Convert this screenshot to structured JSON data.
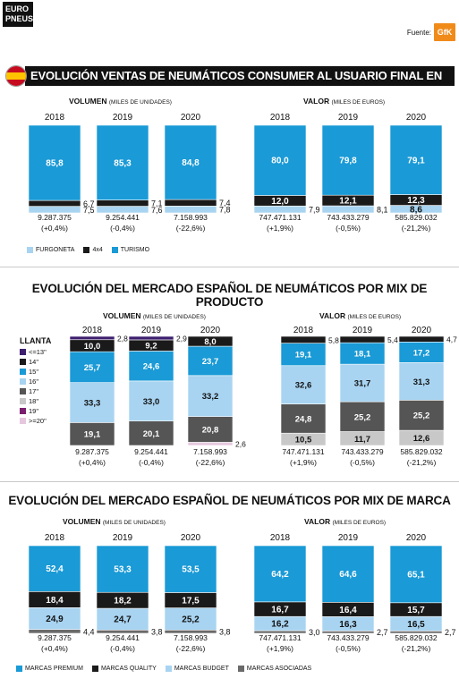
{
  "header": {
    "logo_line1": "EURO",
    "logo_line2": "PNEUS",
    "source_label": "Fuente:",
    "source_logo": "GfK"
  },
  "colors": {
    "turismo": "#1a9ad6",
    "furgoneta": "#a8d4f1",
    "x4": "#1a1a1a",
    "premium": "#1a9ad6",
    "quality": "#1a1a1a",
    "budget": "#a8d4f1",
    "asociadas": "#6a6a6a",
    "r13": "#3d1f6e",
    "r14": "#1a1a1a",
    "r15": "#1a9ad6",
    "r16": "#a8d4f1",
    "r17": "#555555",
    "r18": "#c8c8c8",
    "r19": "#7b1e6e",
    "r20": "#e6c7df"
  },
  "section1": {
    "title": "EVOLUCIÓN VENTAS DE NEUMÁTICOS CONSUMER AL USUARIO FINAL EN ESPAÑA",
    "vol_label": "VOLUMEN",
    "vol_unit": "(MILES DE UNIDADES)",
    "val_label": "VALOR",
    "val_unit": "(MILES DE EUROS)",
    "legend": [
      "FURGONETA",
      "4x4",
      "TURISMO"
    ]
  },
  "section2": {
    "title": "EVOLUCIÓN DEL MERCADO ESPAÑOL DE NEUMÁTICOS POR MIX DE PRODUCTO",
    "vol_label": "VOLUMEN",
    "vol_unit": "(MILES DE UNIDADES)",
    "val_label": "VALOR",
    "val_unit": "(MILES DE EUROS)",
    "llanta_title": "LLANTA",
    "llanta_items": [
      "<=13\"",
      "14\"",
      "15\"",
      "16\"",
      "17\"",
      "18\"",
      "19\"",
      ">=20\""
    ]
  },
  "section3": {
    "title": "EVOLUCIÓN DEL MERCADO ESPAÑOL DE NEUMÁTICOS POR MIX DE MARCA",
    "vol_label": "VOLUMEN",
    "vol_unit": "(MILES DE UNIDADES)",
    "val_label": "VALOR",
    "val_unit": "(MILES DE EUROS)",
    "legend": [
      "MARCAS PREMIUM",
      "MARCAS QUALITY",
      "MARCAS BUDGET",
      "MARCAS ASOCIADAS"
    ]
  },
  "chart_data": [
    {
      "type": "bar",
      "stacked": true,
      "id": "s1-vol",
      "categories": [
        "2018",
        "2019",
        "2020"
      ],
      "totals": [
        "9.287.375",
        "9.254.441",
        "7.158.993"
      ],
      "changes": [
        "(+0,4%)",
        "(-0,4%)",
        "(-22,6%)"
      ],
      "series": [
        {
          "name": "FURGONETA",
          "values": [
            7.5,
            7.6,
            7.8
          ]
        },
        {
          "name": "4x4",
          "values": [
            6.7,
            7.1,
            7.4
          ]
        },
        {
          "name": "TURISMO",
          "values": [
            85.8,
            85.3,
            84.8
          ]
        }
      ]
    },
    {
      "type": "bar",
      "stacked": true,
      "id": "s1-val",
      "categories": [
        "2018",
        "2019",
        "2020"
      ],
      "totals": [
        "747.471.131",
        "743.433.279",
        "585.829.032"
      ],
      "changes": [
        "(+1,9%)",
        "(-0,5%)",
        "(-21,2%)"
      ],
      "series": [
        {
          "name": "FURGONETA",
          "values": [
            7.9,
            8.1,
            8.6
          ]
        },
        {
          "name": "4x4",
          "values": [
            12.0,
            12.1,
            12.3
          ]
        },
        {
          "name": "TURISMO",
          "values": [
            80.0,
            79.8,
            79.1
          ]
        }
      ]
    },
    {
      "type": "bar",
      "stacked": true,
      "id": "s2-vol",
      "categories": [
        "2018",
        "2019",
        "2020"
      ],
      "totals": [
        "9.287.375",
        "9.254.441",
        "7.158.993"
      ],
      "changes": [
        "(+0,4%)",
        "(-0,4%)",
        "(-22,6%)"
      ],
      "series": [
        {
          "name": ">=20\"",
          "values": [
            0.0,
            0.0,
            2.6
          ]
        },
        {
          "name": "18\"",
          "values": [
            0.0,
            0.0,
            0.0
          ]
        },
        {
          "name": "17\"",
          "values": [
            19.1,
            20.1,
            20.8
          ]
        },
        {
          "name": "16\"",
          "values": [
            33.3,
            33.0,
            33.2
          ]
        },
        {
          "name": "15\"",
          "values": [
            25.7,
            24.6,
            23.7
          ]
        },
        {
          "name": "14\"",
          "values": [
            10.0,
            9.2,
            8.0
          ]
        },
        {
          "name": "<=13\"",
          "values": [
            2.8,
            2.9,
            0.0
          ]
        }
      ]
    },
    {
      "type": "bar",
      "stacked": true,
      "id": "s2-val",
      "categories": [
        "2018",
        "2019",
        "2020"
      ],
      "totals": [
        "747.471.131",
        "743.433.279",
        "585.829.032"
      ],
      "changes": [
        "(+1,9%)",
        "(-0,5%)",
        "(-21,2%)"
      ],
      "series": [
        {
          "name": "18\"",
          "values": [
            10.5,
            11.7,
            12.6
          ]
        },
        {
          "name": "17\"",
          "values": [
            24.8,
            25.2,
            25.2
          ]
        },
        {
          "name": "16\"",
          "values": [
            32.6,
            31.7,
            31.3
          ]
        },
        {
          "name": "15\"",
          "values": [
            19.1,
            18.1,
            17.2
          ]
        },
        {
          "name": "14\"",
          "values": [
            5.8,
            5.4,
            4.7
          ]
        }
      ]
    },
    {
      "type": "bar",
      "stacked": true,
      "id": "s3-vol",
      "categories": [
        "2018",
        "2019",
        "2020"
      ],
      "totals": [
        "9.287.375",
        "9.254.441",
        "7.158.993"
      ],
      "changes": [
        "(+0,4%)",
        "(-0,4%)",
        "(-22,6%)"
      ],
      "series": [
        {
          "name": "MARCAS ASOCIADAS",
          "values": [
            4.4,
            3.8,
            3.8
          ]
        },
        {
          "name": "MARCAS BUDGET",
          "values": [
            24.9,
            24.7,
            25.2
          ]
        },
        {
          "name": "MARCAS QUALITY",
          "values": [
            18.4,
            18.2,
            17.5
          ]
        },
        {
          "name": "MARCAS PREMIUM",
          "values": [
            52.4,
            53.3,
            53.5
          ]
        }
      ]
    },
    {
      "type": "bar",
      "stacked": true,
      "id": "s3-val",
      "categories": [
        "2018",
        "2019",
        "2020"
      ],
      "totals": [
        "747.471.131",
        "743.433.279",
        "585.829.032"
      ],
      "changes": [
        "(+1,9%)",
        "(-0,5%)",
        "(-21,2%)"
      ],
      "series": [
        {
          "name": "MARCAS ASOCIADAS",
          "values": [
            3.0,
            2.7,
            2.7
          ]
        },
        {
          "name": "MARCAS BUDGET",
          "values": [
            16.2,
            16.3,
            16.5
          ]
        },
        {
          "name": "MARCAS QUALITY",
          "values": [
            16.7,
            16.4,
            15.7
          ]
        },
        {
          "name": "MARCAS PREMIUM",
          "values": [
            64.2,
            64.6,
            65.1
          ]
        }
      ]
    }
  ]
}
